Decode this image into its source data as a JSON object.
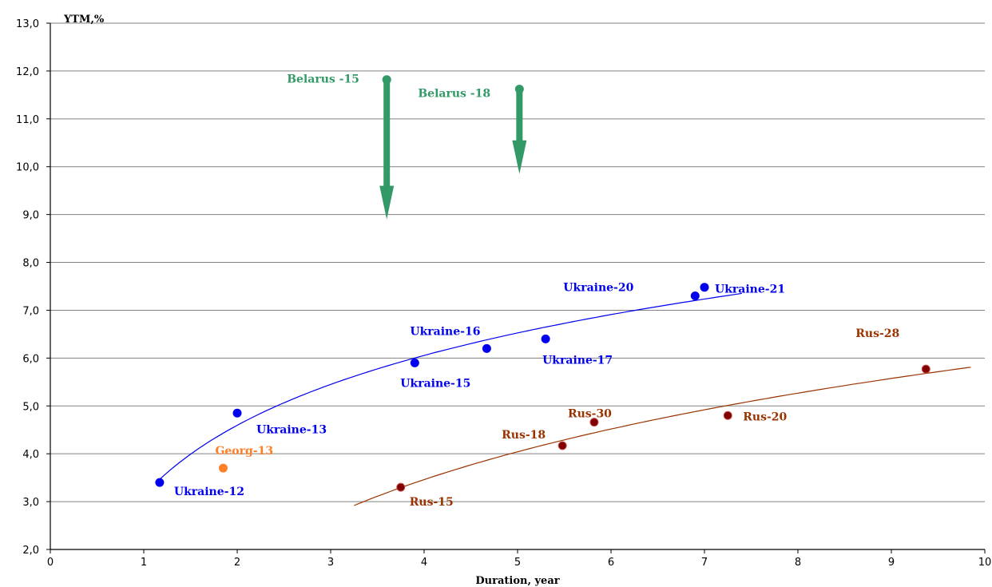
{
  "chart_data": {
    "type": "scatter",
    "xlabel": "Duration, year",
    "ylabel": "YTM,%",
    "xlim": [
      0,
      10
    ],
    "ylim": [
      2,
      13
    ],
    "x_ticks": [
      "0",
      "1",
      "2",
      "3",
      "4",
      "5",
      "6",
      "7",
      "8",
      "9",
      "10"
    ],
    "y_ticks": [
      "2,0",
      "3,0",
      "4,0",
      "5,0",
      "6,0",
      "7,0",
      "8,0",
      "9,0",
      "10,0",
      "11,0",
      "12,0",
      "13,0"
    ],
    "grid": true,
    "colors": {
      "ukraine": "#0000ee",
      "russia": "#993300",
      "russia_marker": "#800000",
      "georgia": "#ff7f27",
      "belarus": "#339966"
    },
    "series": [
      {
        "group": "ukraine",
        "points": [
          {
            "label": "Ukraine-12",
            "x": 1.17,
            "y": 3.4
          },
          {
            "label": "Ukraine-13",
            "x": 2.0,
            "y": 4.85
          },
          {
            "label": "Ukraine-15",
            "x": 3.9,
            "y": 5.9
          },
          {
            "label": "Ukraine-16",
            "x": 4.67,
            "y": 6.2
          },
          {
            "label": "Ukraine-17",
            "x": 5.3,
            "y": 6.4
          },
          {
            "label": "Ukraine-20",
            "x": 6.9,
            "y": 7.3
          },
          {
            "label": "Ukraine-21",
            "x": 7.0,
            "y": 7.48
          }
        ]
      },
      {
        "group": "georgia",
        "points": [
          {
            "label": "Georg-13",
            "x": 1.85,
            "y": 3.7
          }
        ]
      },
      {
        "group": "russia",
        "points": [
          {
            "label": "Rus-15",
            "x": 3.75,
            "y": 3.3
          },
          {
            "label": "Rus-18",
            "x": 5.48,
            "y": 4.17
          },
          {
            "label": "Rus-30",
            "x": 5.82,
            "y": 4.66
          },
          {
            "label": "Rus-20",
            "x": 7.25,
            "y": 4.8
          },
          {
            "label": "Rus-28",
            "x": 9.37,
            "y": 5.77
          }
        ]
      },
      {
        "group": "belarus",
        "points": [
          {
            "label": "Belarus -15",
            "x": 3.6,
            "y": 11.82,
            "arrow_to": 8.9
          },
          {
            "label": "Belarus -18",
            "x": 5.02,
            "y": 11.62,
            "arrow_to": 9.85
          }
        ]
      }
    ],
    "trendlines": [
      {
        "group": "ukraine",
        "type": "log",
        "x_range": [
          1.17,
          7.4
        ]
      },
      {
        "group": "russia",
        "type": "log",
        "x_range": [
          3.25,
          9.85
        ]
      }
    ]
  }
}
